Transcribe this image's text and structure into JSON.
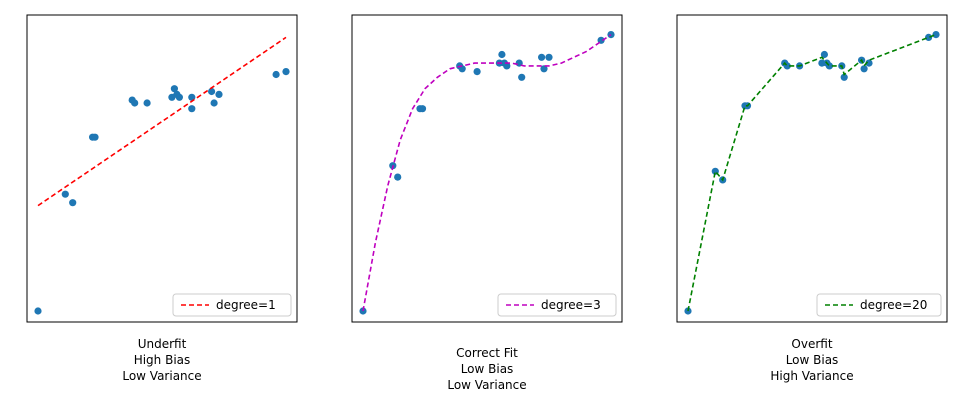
{
  "colors": {
    "points": "#1f77b4",
    "frame": "#000000"
  },
  "chart_data": [
    {
      "type": "scatter",
      "title": "",
      "line_color": "#ff0000",
      "line_style": "dashed",
      "legend": {
        "label": "degree=1",
        "placement": "bottom-right"
      },
      "caption": [
        "Underfit",
        "High Bias",
        "Low Variance"
      ],
      "xlim": [
        0,
        1
      ],
      "ylim": [
        0,
        1
      ],
      "grid": false,
      "ticks_shown": false,
      "points": [
        [
          0.0,
          0.0
        ],
        [
          0.11,
          0.41
        ],
        [
          0.14,
          0.38
        ],
        [
          0.22,
          0.61
        ],
        [
          0.23,
          0.61
        ],
        [
          0.38,
          0.74
        ],
        [
          0.39,
          0.73
        ],
        [
          0.44,
          0.73
        ],
        [
          0.54,
          0.75
        ],
        [
          0.55,
          0.78
        ],
        [
          0.56,
          0.76
        ],
        [
          0.57,
          0.75
        ],
        [
          0.62,
          0.75
        ],
        [
          0.62,
          0.71
        ],
        [
          0.7,
          0.77
        ],
        [
          0.71,
          0.73
        ],
        [
          0.73,
          0.76
        ],
        [
          0.96,
          0.83
        ],
        [
          1.0,
          0.84
        ]
      ],
      "fit": [
        [
          0.0,
          0.37
        ],
        [
          1.0,
          0.96
        ]
      ]
    },
    {
      "type": "scatter",
      "title": "",
      "line_color": "#bf00bf",
      "line_style": "dashed",
      "legend": {
        "label": "degree=3",
        "placement": "bottom-right"
      },
      "caption": [
        "Correct Fit",
        "Low Bias",
        "Low Variance"
      ],
      "xlim": [
        0,
        1
      ],
      "ylim": [
        0,
        1
      ],
      "grid": false,
      "ticks_shown": false,
      "points": [
        [
          0.0,
          0.0
        ],
        [
          0.12,
          0.51
        ],
        [
          0.14,
          0.47
        ],
        [
          0.23,
          0.71
        ],
        [
          0.24,
          0.71
        ],
        [
          0.39,
          0.86
        ],
        [
          0.4,
          0.85
        ],
        [
          0.46,
          0.84
        ],
        [
          0.55,
          0.87
        ],
        [
          0.56,
          0.9
        ],
        [
          0.57,
          0.87
        ],
        [
          0.58,
          0.86
        ],
        [
          0.63,
          0.87
        ],
        [
          0.64,
          0.82
        ],
        [
          0.72,
          0.89
        ],
        [
          0.73,
          0.85
        ],
        [
          0.75,
          0.89
        ],
        [
          0.96,
          0.95
        ],
        [
          1.0,
          0.97
        ]
      ],
      "fit": [
        [
          0.0,
          0.0
        ],
        [
          0.05,
          0.24
        ],
        [
          0.1,
          0.44
        ],
        [
          0.15,
          0.6
        ],
        [
          0.2,
          0.71
        ],
        [
          0.25,
          0.78
        ],
        [
          0.3,
          0.82
        ],
        [
          0.35,
          0.85
        ],
        [
          0.4,
          0.86
        ],
        [
          0.45,
          0.87
        ],
        [
          0.5,
          0.87
        ],
        [
          0.55,
          0.87
        ],
        [
          0.6,
          0.87
        ],
        [
          0.65,
          0.86
        ],
        [
          0.7,
          0.86
        ],
        [
          0.75,
          0.86
        ],
        [
          0.8,
          0.87
        ],
        [
          0.85,
          0.89
        ],
        [
          0.9,
          0.91
        ],
        [
          0.95,
          0.94
        ],
        [
          1.0,
          0.97
        ]
      ]
    },
    {
      "type": "scatter",
      "title": "",
      "line_color": "#008000",
      "line_style": "dashed",
      "legend": {
        "label": "degree=20",
        "placement": "bottom-right"
      },
      "caption": [
        "Overfit",
        "Low Bias",
        "High Variance"
      ],
      "xlim": [
        0,
        1
      ],
      "ylim": [
        0,
        1
      ],
      "grid": false,
      "ticks_shown": false,
      "points": [
        [
          0.0,
          0.0
        ],
        [
          0.11,
          0.49
        ],
        [
          0.14,
          0.46
        ],
        [
          0.23,
          0.72
        ],
        [
          0.24,
          0.72
        ],
        [
          0.39,
          0.87
        ],
        [
          0.4,
          0.86
        ],
        [
          0.45,
          0.86
        ],
        [
          0.54,
          0.87
        ],
        [
          0.55,
          0.9
        ],
        [
          0.56,
          0.87
        ],
        [
          0.57,
          0.86
        ],
        [
          0.62,
          0.86
        ],
        [
          0.63,
          0.82
        ],
        [
          0.7,
          0.88
        ],
        [
          0.71,
          0.85
        ],
        [
          0.73,
          0.87
        ],
        [
          0.97,
          0.96
        ],
        [
          1.0,
          0.97
        ]
      ],
      "fit": [
        [
          0.0,
          0.0
        ],
        [
          0.11,
          0.49
        ],
        [
          0.14,
          0.46
        ],
        [
          0.23,
          0.72
        ],
        [
          0.24,
          0.72
        ],
        [
          0.39,
          0.87
        ],
        [
          0.4,
          0.86
        ],
        [
          0.45,
          0.86
        ],
        [
          0.54,
          0.89
        ],
        [
          0.55,
          0.88
        ],
        [
          0.56,
          0.87
        ],
        [
          0.57,
          0.86
        ],
        [
          0.62,
          0.86
        ],
        [
          0.63,
          0.83
        ],
        [
          0.7,
          0.88
        ],
        [
          0.71,
          0.86
        ],
        [
          0.73,
          0.88
        ],
        [
          0.97,
          0.96
        ],
        [
          1.0,
          0.97
        ]
      ]
    }
  ]
}
